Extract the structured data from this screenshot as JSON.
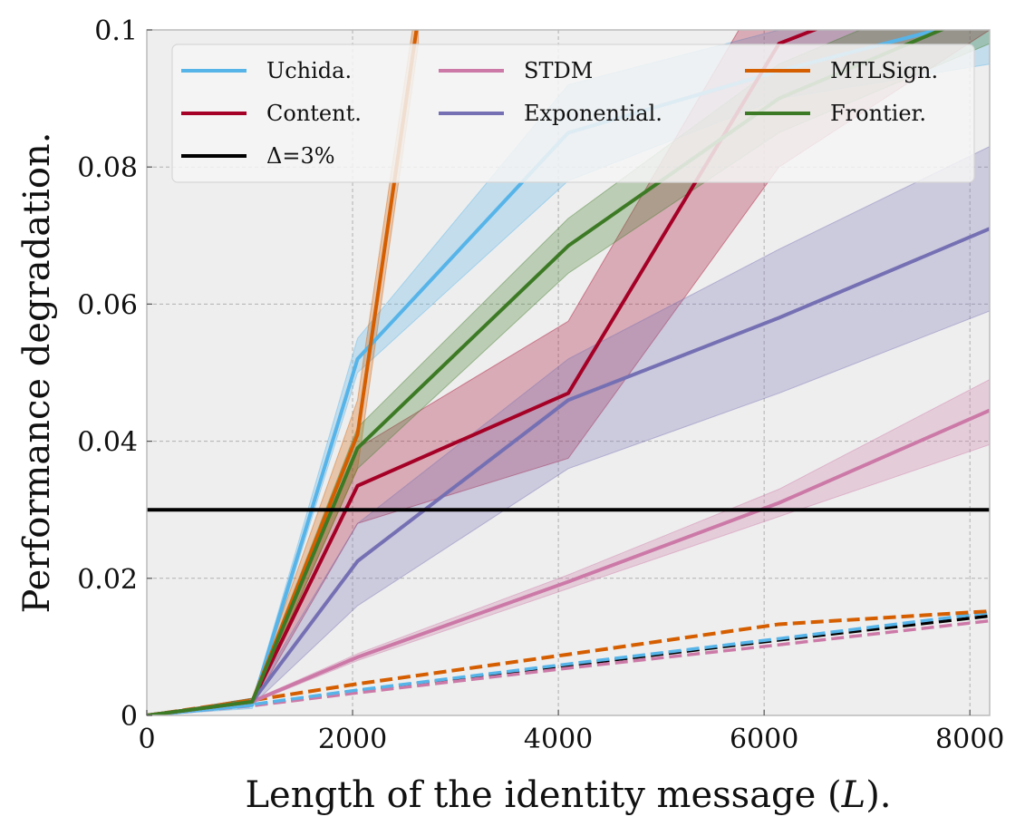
{
  "chart_data": {
    "type": "line",
    "xlabel": "Length of the identity message (",
    "xlabel_var": "L",
    "xlabel_suffix": ").",
    "ylabel": "Performance degradation.",
    "xlim": [
      0,
      8192
    ],
    "ylim": [
      0,
      0.1
    ],
    "xticks": [
      0,
      2000,
      4000,
      6000,
      8000
    ],
    "xtick_labels": [
      "0",
      "2000",
      "4000",
      "6000",
      "8000"
    ],
    "yticks": [
      0,
      0.02,
      0.04,
      0.06,
      0.08,
      0.1
    ],
    "ytick_labels": [
      "0",
      "0.02",
      "0.04",
      "0.06",
      "0.08",
      "0.1"
    ],
    "grid": true,
    "legend_position": "top",
    "threshold": {
      "name": "Δ=3%",
      "y": 0.03,
      "color": "#000000"
    },
    "series": [
      {
        "name": "Uchida.",
        "color": "#56B4E9",
        "x": [
          0,
          1024,
          2048,
          4096,
          6144,
          8192
        ],
        "y": [
          0,
          0.0015,
          0.052,
          0.085,
          0.094,
          0.102
        ],
        "lower": [
          0,
          0.001,
          0.05,
          0.078,
          0.09,
          0.095
        ],
        "upper": [
          0,
          0.002,
          0.055,
          0.092,
          0.1,
          0.108
        ]
      },
      {
        "name": "Content.",
        "color": "#A50026",
        "x": [
          0,
          1024,
          2048,
          4096,
          6144,
          8192
        ],
        "y": [
          0,
          0.002,
          0.0335,
          0.047,
          0.098,
          0.11
        ],
        "lower": [
          0,
          0.0015,
          0.028,
          0.0375,
          0.08,
          0.1
        ],
        "upper": [
          0,
          0.0025,
          0.039,
          0.0575,
          0.11,
          0.12
        ]
      },
      {
        "name": "STDM",
        "color": "#CC79A7",
        "x": [
          0,
          1024,
          2048,
          4096,
          6144,
          8192
        ],
        "y": [
          0,
          0.002,
          0.0085,
          0.0195,
          0.031,
          0.0445
        ],
        "lower": [
          0,
          0.0018,
          0.008,
          0.0185,
          0.029,
          0.0395
        ],
        "upper": [
          0,
          0.0022,
          0.009,
          0.0205,
          0.033,
          0.049
        ]
      },
      {
        "name": "Exponential.",
        "color": "#7570B3",
        "x": [
          0,
          1024,
          2048,
          4096,
          6144,
          8192
        ],
        "y": [
          0,
          0.002,
          0.0225,
          0.046,
          0.058,
          0.071
        ],
        "lower": [
          0,
          0.0015,
          0.016,
          0.036,
          0.047,
          0.059
        ],
        "upper": [
          0,
          0.0025,
          0.028,
          0.052,
          0.068,
          0.083
        ]
      },
      {
        "name": "MTLSign.",
        "color": "#D55E00",
        "x": [
          0,
          1024,
          2048,
          2640
        ],
        "y": [
          0,
          0.002,
          0.041,
          0.102
        ],
        "lower": [
          0,
          0.0015,
          0.036,
          0.098
        ],
        "upper": [
          0,
          0.0025,
          0.046,
          0.106
        ]
      },
      {
        "name": "Frontier.",
        "color": "#3D7A25",
        "x": [
          0,
          1024,
          2048,
          4096,
          6144,
          8192
        ],
        "y": [
          0,
          0.002,
          0.039,
          0.0685,
          0.09,
          0.103
        ],
        "lower": [
          0,
          0.0015,
          0.036,
          0.0645,
          0.085,
          0.098
        ],
        "upper": [
          0,
          0.0025,
          0.042,
          0.0725,
          0.095,
          0.108
        ]
      }
    ],
    "dashed_series": [
      {
        "color": "#000000",
        "x": [
          0,
          1024,
          2048,
          4096,
          6144,
          8192
        ],
        "y": [
          0,
          0.0015,
          0.0036,
          0.0073,
          0.011,
          0.0145
        ]
      },
      {
        "color": "#CC79A7",
        "x": [
          0,
          1024,
          2048,
          4096,
          6144,
          8192
        ],
        "y": [
          0,
          0.0014,
          0.0033,
          0.0069,
          0.0103,
          0.0138
        ]
      },
      {
        "color": "#56B4E9",
        "x": [
          0,
          1024,
          2048,
          4096,
          6144,
          8192
        ],
        "y": [
          0,
          0.0016,
          0.0037,
          0.0075,
          0.0112,
          0.015
        ]
      },
      {
        "color": "#D55E00",
        "x": [
          0,
          1024,
          2048,
          4096,
          6144,
          8192
        ],
        "y": [
          0,
          0.0022,
          0.0046,
          0.0089,
          0.0133,
          0.0152
        ]
      }
    ],
    "legend_order": [
      "Uchida.",
      "Content.",
      "Δ=3%",
      "STDM",
      "Exponential.",
      "MTLSign.",
      "Frontier."
    ]
  }
}
